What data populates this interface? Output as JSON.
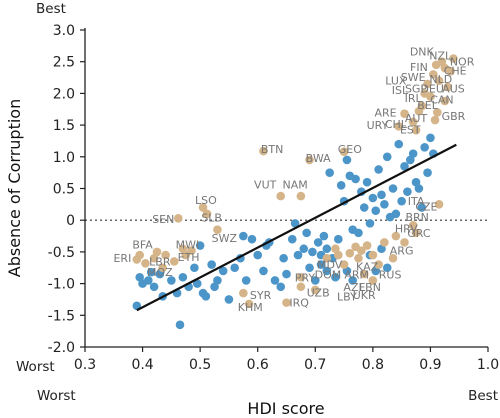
{
  "chart_data": {
    "type": "scatter",
    "xlabel": "HDI score",
    "ylabel": "Absence of Corruption",
    "xlim": [
      0.3,
      1.0
    ],
    "ylim": [
      -2.0,
      3.0
    ],
    "x_ticks": [
      "0.3",
      "0.4",
      "0.5",
      "0.6",
      "0.7",
      "0.8",
      "0.9",
      "1.0"
    ],
    "y_ticks": [
      "-2.0",
      "-1.5",
      "-1.0",
      "-0.5",
      "0",
      "0.5",
      "1.0",
      "1.5",
      "2.0",
      "2.5",
      "3.0"
    ],
    "y_top_label": "Best",
    "y_bottom_label": "Worst",
    "x_left_label": "Worst",
    "x_right_label": "Best",
    "grid": false,
    "reference_line_y": 0,
    "trend_line": {
      "x": [
        0.39,
        0.945
      ],
      "y": [
        -1.42,
        1.19
      ]
    },
    "colors": {
      "highlight": "#d4b488",
      "other": "#4b95c9",
      "trend": "#111111",
      "label": "#777777"
    },
    "highlighted_points": [
      {
        "x": 0.39,
        "y": -0.62
      },
      {
        "x": 0.395,
        "y": -0.55
      },
      {
        "x": 0.405,
        "y": -0.68
      },
      {
        "x": 0.42,
        "y": -0.6
      },
      {
        "x": 0.425,
        "y": -0.5
      },
      {
        "x": 0.44,
        "y": -0.55
      },
      {
        "x": 0.435,
        "y": -0.75
      },
      {
        "x": 0.455,
        "y": -0.65
      },
      {
        "x": 0.47,
        "y": -0.45
      },
      {
        "x": 0.475,
        "y": -0.55
      },
      {
        "x": 0.485,
        "y": -0.48
      },
      {
        "x": 0.462,
        "y": 0.03
      },
      {
        "x": 0.505,
        "y": 0.2
      },
      {
        "x": 0.512,
        "y": 0.1
      },
      {
        "x": 0.53,
        "y": -0.15
      },
      {
        "x": 0.61,
        "y": 1.09
      },
      {
        "x": 0.64,
        "y": 0.38
      },
      {
        "x": 0.675,
        "y": 0.38
      },
      {
        "x": 0.69,
        "y": 0.95
      },
      {
        "x": 0.75,
        "y": 1.08
      },
      {
        "x": 0.575,
        "y": -1.15
      },
      {
        "x": 0.585,
        "y": -1.32
      },
      {
        "x": 0.65,
        "y": -1.3
      },
      {
        "x": 0.675,
        "y": -1.05
      },
      {
        "x": 0.675,
        "y": -0.9
      },
      {
        "x": 0.7,
        "y": -1.1
      },
      {
        "x": 0.72,
        "y": -0.6
      },
      {
        "x": 0.735,
        "y": -0.45
      },
      {
        "x": 0.74,
        "y": -0.55
      },
      {
        "x": 0.75,
        "y": -0.7
      },
      {
        "x": 0.76,
        "y": -0.52
      },
      {
        "x": 0.77,
        "y": -0.42
      },
      {
        "x": 0.775,
        "y": -0.6
      },
      {
        "x": 0.78,
        "y": -0.48
      },
      {
        "x": 0.785,
        "y": -0.85
      },
      {
        "x": 0.79,
        "y": -0.4
      },
      {
        "x": 0.8,
        "y": -0.55
      },
      {
        "x": 0.8,
        "y": -0.95
      },
      {
        "x": 0.81,
        "y": -0.7
      },
      {
        "x": 0.82,
        "y": -0.35
      },
      {
        "x": 0.835,
        "y": -0.6
      },
      {
        "x": 0.84,
        "y": -0.25
      },
      {
        "x": 0.855,
        "y": -0.35
      },
      {
        "x": 0.87,
        "y": -0.08
      },
      {
        "x": 0.875,
        "y": -0.2
      },
      {
        "x": 0.845,
        "y": 1.48
      },
      {
        "x": 0.855,
        "y": 1.68
      },
      {
        "x": 0.87,
        "y": 1.55
      },
      {
        "x": 0.875,
        "y": 1.42
      },
      {
        "x": 0.88,
        "y": 1.72
      },
      {
        "x": 0.885,
        "y": 1.8
      },
      {
        "x": 0.89,
        "y": 2.0
      },
      {
        "x": 0.895,
        "y": 2.15
      },
      {
        "x": 0.9,
        "y": 1.95
      },
      {
        "x": 0.905,
        "y": 2.3
      },
      {
        "x": 0.91,
        "y": 2.45
      },
      {
        "x": 0.915,
        "y": 2.2
      },
      {
        "x": 0.92,
        "y": 2.5
      },
      {
        "x": 0.925,
        "y": 2.4
      },
      {
        "x": 0.93,
        "y": 2.1
      },
      {
        "x": 0.935,
        "y": 2.35
      },
      {
        "x": 0.94,
        "y": 2.55
      },
      {
        "x": 0.925,
        "y": 1.88
      },
      {
        "x": 0.912,
        "y": 1.7
      },
      {
        "x": 0.908,
        "y": 1.58
      },
      {
        "x": 0.915,
        "y": 0.25
      }
    ],
    "other_points": [
      {
        "x": 0.39,
        "y": -1.35
      },
      {
        "x": 0.395,
        "y": -0.9
      },
      {
        "x": 0.4,
        "y": -1.0
      },
      {
        "x": 0.41,
        "y": -0.95
      },
      {
        "x": 0.415,
        "y": -0.82
      },
      {
        "x": 0.42,
        "y": -1.05
      },
      {
        "x": 0.43,
        "y": -0.85
      },
      {
        "x": 0.435,
        "y": -1.2
      },
      {
        "x": 0.45,
        "y": -0.95
      },
      {
        "x": 0.46,
        "y": -1.15
      },
      {
        "x": 0.465,
        "y": -1.65
      },
      {
        "x": 0.47,
        "y": -0.9
      },
      {
        "x": 0.48,
        "y": -1.05
      },
      {
        "x": 0.49,
        "y": -0.75
      },
      {
        "x": 0.495,
        "y": -1.0
      },
      {
        "x": 0.5,
        "y": -0.4
      },
      {
        "x": 0.505,
        "y": -1.15
      },
      {
        "x": 0.51,
        "y": -1.2
      },
      {
        "x": 0.52,
        "y": -0.7
      },
      {
        "x": 0.525,
        "y": -1.05
      },
      {
        "x": 0.53,
        "y": -0.95
      },
      {
        "x": 0.54,
        "y": -0.8
      },
      {
        "x": 0.55,
        "y": -1.25
      },
      {
        "x": 0.56,
        "y": -0.75
      },
      {
        "x": 0.57,
        "y": -0.6
      },
      {
        "x": 0.575,
        "y": -0.25
      },
      {
        "x": 0.58,
        "y": -0.95
      },
      {
        "x": 0.59,
        "y": -0.3
      },
      {
        "x": 0.6,
        "y": -0.55
      },
      {
        "x": 0.61,
        "y": -0.8
      },
      {
        "x": 0.615,
        "y": -0.4
      },
      {
        "x": 0.62,
        "y": -0.35
      },
      {
        "x": 0.63,
        "y": -0.95
      },
      {
        "x": 0.64,
        "y": -1.05
      },
      {
        "x": 0.645,
        "y": -0.6
      },
      {
        "x": 0.65,
        "y": -0.85
      },
      {
        "x": 0.66,
        "y": -0.3
      },
      {
        "x": 0.665,
        "y": -0.05
      },
      {
        "x": 0.67,
        "y": -0.55
      },
      {
        "x": 0.68,
        "y": -0.45
      },
      {
        "x": 0.685,
        "y": -0.2
      },
      {
        "x": 0.69,
        "y": -0.75
      },
      {
        "x": 0.695,
        "y": -0.5
      },
      {
        "x": 0.7,
        "y": -0.95
      },
      {
        "x": 0.705,
        "y": -0.35
      },
      {
        "x": 0.71,
        "y": -0.7
      },
      {
        "x": 0.715,
        "y": -0.25
      },
      {
        "x": 0.72,
        "y": -0.45
      },
      {
        "x": 0.725,
        "y": 0.75
      },
      {
        "x": 0.73,
        "y": -0.6
      },
      {
        "x": 0.735,
        "y": -0.9
      },
      {
        "x": 0.74,
        "y": -0.3
      },
      {
        "x": 0.745,
        "y": 0.55
      },
      {
        "x": 0.75,
        "y": 0.3
      },
      {
        "x": 0.755,
        "y": 0.95
      },
      {
        "x": 0.76,
        "y": 0.7
      },
      {
        "x": 0.765,
        "y": -0.15
      },
      {
        "x": 0.77,
        "y": 0.65
      },
      {
        "x": 0.775,
        "y": -0.2
      },
      {
        "x": 0.78,
        "y": 0.45
      },
      {
        "x": 0.785,
        "y": 0.2
      },
      {
        "x": 0.79,
        "y": 0.6
      },
      {
        "x": 0.795,
        "y": -0.05
      },
      {
        "x": 0.8,
        "y": 0.35
      },
      {
        "x": 0.805,
        "y": 0.15
      },
      {
        "x": 0.81,
        "y": 0.8
      },
      {
        "x": 0.815,
        "y": 0.4
      },
      {
        "x": 0.82,
        "y": 0.25
      },
      {
        "x": 0.825,
        "y": 1.0
      },
      {
        "x": 0.83,
        "y": 0.05
      },
      {
        "x": 0.835,
        "y": 0.5
      },
      {
        "x": 0.84,
        "y": 0.1
      },
      {
        "x": 0.845,
        "y": 1.2
      },
      {
        "x": 0.85,
        "y": 0.3
      },
      {
        "x": 0.855,
        "y": 0.85
      },
      {
        "x": 0.86,
        "y": 0.45
      },
      {
        "x": 0.865,
        "y": 0.95
      },
      {
        "x": 0.87,
        "y": 1.05
      },
      {
        "x": 0.875,
        "y": 0.6
      },
      {
        "x": 0.88,
        "y": 0.5
      },
      {
        "x": 0.885,
        "y": 0.2
      },
      {
        "x": 0.89,
        "y": 1.15
      },
      {
        "x": 0.895,
        "y": 0.75
      },
      {
        "x": 0.9,
        "y": 1.3
      },
      {
        "x": 0.905,
        "y": 1.05
      },
      {
        "x": 0.795,
        "y": -0.55
      },
      {
        "x": 0.805,
        "y": -0.8
      },
      {
        "x": 0.815,
        "y": -0.45
      },
      {
        "x": 0.825,
        "y": -0.75
      },
      {
        "x": 0.755,
        "y": -0.8
      },
      {
        "x": 0.765,
        "y": -0.95
      },
      {
        "x": 0.72,
        "y": -0.8
      },
      {
        "x": 0.71,
        "y": -0.55
      }
    ],
    "point_labels": [
      {
        "text": "DNK",
        "x": 0.885,
        "y": 2.66
      },
      {
        "text": "NZL",
        "x": 0.917,
        "y": 2.6
      },
      {
        "text": "NOR",
        "x": 0.955,
        "y": 2.5
      },
      {
        "text": "FIN",
        "x": 0.88,
        "y": 2.42
      },
      {
        "text": "CHE",
        "x": 0.943,
        "y": 2.36
      },
      {
        "text": "SWE",
        "x": 0.87,
        "y": 2.26
      },
      {
        "text": "NLD",
        "x": 0.918,
        "y": 2.23
      },
      {
        "text": "LUX",
        "x": 0.84,
        "y": 2.2
      },
      {
        "text": "ISL",
        "x": 0.847,
        "y": 2.05
      },
      {
        "text": "SGP",
        "x": 0.875,
        "y": 2.08
      },
      {
        "text": "DEU",
        "x": 0.903,
        "y": 2.08
      },
      {
        "text": "AUS",
        "x": 0.94,
        "y": 2.08
      },
      {
        "text": "IRL",
        "x": 0.87,
        "y": 1.93
      },
      {
        "text": "CAN",
        "x": 0.92,
        "y": 1.9
      },
      {
        "text": "BEL",
        "x": 0.895,
        "y": 1.82
      },
      {
        "text": "ARE",
        "x": 0.822,
        "y": 1.7
      },
      {
        "text": "AUT",
        "x": 0.875,
        "y": 1.61
      },
      {
        "text": "GBR",
        "x": 0.94,
        "y": 1.64
      },
      {
        "text": "URY",
        "x": 0.808,
        "y": 1.5
      },
      {
        "text": "CHL",
        "x": 0.84,
        "y": 1.52
      },
      {
        "text": "EST",
        "x": 0.865,
        "y": 1.43
      },
      {
        "text": "BTN",
        "x": 0.625,
        "y": 1.12
      },
      {
        "text": "GEO",
        "x": 0.76,
        "y": 1.12
      },
      {
        "text": "BWA",
        "x": 0.705,
        "y": 0.98
      },
      {
        "text": "VUT",
        "x": 0.613,
        "y": 0.56
      },
      {
        "text": "NAM",
        "x": 0.665,
        "y": 0.56
      },
      {
        "text": "ITA",
        "x": 0.875,
        "y": 0.3
      },
      {
        "text": "CZE",
        "x": 0.893,
        "y": 0.22
      },
      {
        "text": "LSO",
        "x": 0.51,
        "y": 0.32
      },
      {
        "text": "SLB",
        "x": 0.52,
        "y": 0.04
      },
      {
        "text": "SEN",
        "x": 0.436,
        "y": 0.02
      },
      {
        "text": "BRN",
        "x": 0.877,
        "y": 0.05
      },
      {
        "text": "HRV",
        "x": 0.858,
        "y": -0.13
      },
      {
        "text": "GRC",
        "x": 0.88,
        "y": -0.2
      },
      {
        "text": "SWZ",
        "x": 0.542,
        "y": -0.28
      },
      {
        "text": "BFA",
        "x": 0.4,
        "y": -0.38
      },
      {
        "text": "MWI",
        "x": 0.478,
        "y": -0.38
      },
      {
        "text": "ETH",
        "x": 0.48,
        "y": -0.58
      },
      {
        "text": "ERI",
        "x": 0.365,
        "y": -0.6
      },
      {
        "text": "LBR",
        "x": 0.43,
        "y": -0.65
      },
      {
        "text": "MOZ",
        "x": 0.43,
        "y": -0.82
      },
      {
        "text": "ARG",
        "x": 0.85,
        "y": -0.48
      },
      {
        "text": "RUS",
        "x": 0.83,
        "y": -0.86
      },
      {
        "text": "PRY",
        "x": 0.682,
        "y": -0.9
      },
      {
        "text": "DOM",
        "x": 0.722,
        "y": -0.86
      },
      {
        "text": "ARM",
        "x": 0.772,
        "y": -0.86
      },
      {
        "text": "KAZ",
        "x": 0.79,
        "y": -0.73
      },
      {
        "text": "MDV",
        "x": 0.725,
        "y": -0.7
      },
      {
        "text": "AZE",
        "x": 0.768,
        "y": -1.05
      },
      {
        "text": "LBN",
        "x": 0.795,
        "y": -1.05
      },
      {
        "text": "UZB",
        "x": 0.705,
        "y": -1.14
      },
      {
        "text": "LBY",
        "x": 0.755,
        "y": -1.2
      },
      {
        "text": "UKR",
        "x": 0.785,
        "y": -1.18
      },
      {
        "text": "SYR",
        "x": 0.605,
        "y": -1.18
      },
      {
        "text": "KHM",
        "x": 0.587,
        "y": -1.37
      },
      {
        "text": "IRQ",
        "x": 0.672,
        "y": -1.3
      }
    ]
  }
}
